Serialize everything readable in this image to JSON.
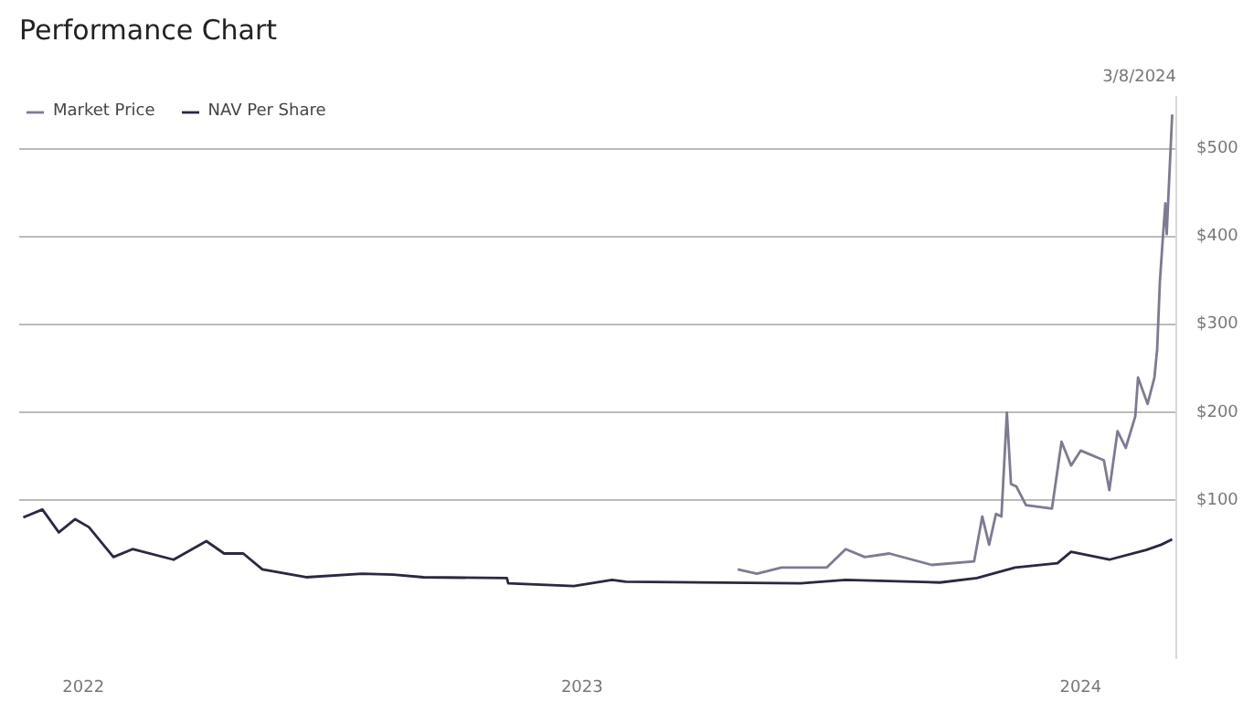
{
  "chart_data": {
    "type": "line",
    "title": "Performance Chart",
    "annotations": [
      "3/8/2024"
    ],
    "legend": "top left",
    "grid": "y",
    "marker": "none",
    "line_style": "solid",
    "xlim": [
      "2021-11-15",
      "2024-03-11"
    ],
    "xticks": [
      {
        "value": "2022-01-01",
        "label": "2022"
      },
      {
        "value": "2023-01-01",
        "label": "2023"
      },
      {
        "value": "2024-01-01",
        "label": "2024"
      }
    ],
    "ylim": [
      -80,
      560
    ],
    "yticks": [
      {
        "value": 100,
        "label": "$100"
      },
      {
        "value": 200,
        "label": "$200"
      },
      {
        "value": 300,
        "label": "$300"
      },
      {
        "value": 400,
        "label": "$400"
      },
      {
        "value": 500,
        "label": "$500"
      }
    ],
    "series": [
      {
        "name": "Market Price",
        "color": "#7c7b92",
        "x": [
          "2023-04-25",
          "2023-05-09",
          "2023-05-27",
          "2023-06-29",
          "2023-07-13",
          "2023-07-27",
          "2023-08-14",
          "2023-09-14",
          "2023-10-15",
          "2023-10-21",
          "2023-10-26",
          "2023-10-31",
          "2023-11-04",
          "2023-11-08",
          "2023-11-11",
          "2023-11-15",
          "2023-11-22",
          "2023-12-11",
          "2023-12-18",
          "2023-12-25",
          "2024-01-01",
          "2024-01-18",
          "2024-01-22",
          "2024-01-28",
          "2024-02-03",
          "2024-02-10",
          "2024-02-12",
          "2024-02-19",
          "2024-02-24",
          "2024-02-26",
          "2024-02-28",
          "2024-03-01",
          "2024-03-03",
          "2024-03-04",
          "2024-03-05",
          "2024-03-08"
        ],
        "values": [
          22,
          17,
          24,
          24,
          45,
          36,
          40,
          27,
          31,
          82,
          50,
          85,
          82,
          200,
          119,
          116,
          95,
          91,
          167,
          140,
          157,
          146,
          112,
          179,
          160,
          196,
          240,
          210,
          240,
          272,
          349,
          395,
          438,
          403,
          438,
          539
        ]
      },
      {
        "name": "NAV Per Share",
        "color": "#2b2940",
        "x": [
          "2021-11-18",
          "2021-12-02",
          "2021-12-14",
          "2021-12-26",
          "2022-01-05",
          "2022-01-23",
          "2022-02-06",
          "2022-03-08",
          "2022-04-01",
          "2022-04-14",
          "2022-04-28",
          "2022-05-12",
          "2022-06-13",
          "2022-07-24",
          "2022-08-16",
          "2022-09-07",
          "2022-11-07",
          "2022-11-08",
          "2022-12-26",
          "2023-01-23",
          "2023-02-02",
          "2023-06-10",
          "2023-07-13",
          "2023-09-20",
          "2023-10-17",
          "2023-11-14",
          "2023-12-15",
          "2023-12-25",
          "2024-01-22",
          "2024-02-18",
          "2024-02-29",
          "2024-03-08"
        ],
        "values": [
          81,
          90,
          64,
          79,
          70,
          36,
          45,
          33,
          54,
          40,
          40,
          22,
          13,
          17,
          16,
          13,
          12,
          6,
          3,
          10,
          8,
          6,
          10,
          7,
          12,
          24,
          29,
          42,
          33,
          44,
          50,
          56
        ]
      }
    ]
  }
}
